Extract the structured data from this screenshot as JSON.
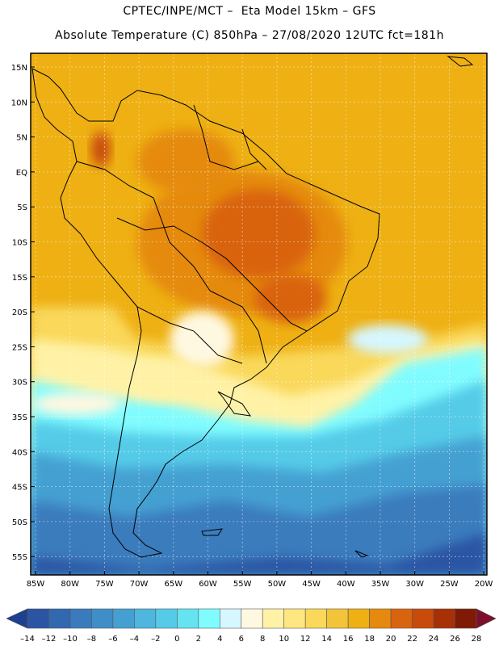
{
  "header": {
    "title_line1": "CPTEC/INPE/MCT –  Eta Model 15km – GFS",
    "title_line2": "Absolute Temperature (C) 850hPa – 27/08/2020 12UTC fct=181h"
  },
  "axes": {
    "lat_labels": [
      "15N",
      "10N",
      "5N",
      "EQ",
      "5S",
      "10S",
      "15S",
      "20S",
      "25S",
      "30S",
      "35S",
      "40S",
      "45S",
      "50S",
      "55S"
    ],
    "lon_labels": [
      "85W",
      "80W",
      "75W",
      "70W",
      "65W",
      "60W",
      "55W",
      "50W",
      "45W",
      "40W",
      "35W",
      "30W",
      "25W",
      "20W"
    ]
  },
  "colorbar": {
    "labels": [
      "-14",
      "-12",
      "-10",
      "-8",
      "-6",
      "-4",
      "-2",
      "0",
      "2",
      "4",
      "6",
      "8",
      "10",
      "12",
      "14",
      "16",
      "18",
      "20",
      "22",
      "24",
      "26",
      "28"
    ],
    "colors": [
      "#1f3f8f",
      "#2b55a3",
      "#3168b0",
      "#3a7bbd",
      "#3f8ec8",
      "#45a0d2",
      "#4eb6df",
      "#55cbe8",
      "#66e3f0",
      "#80fcff",
      "#d6f7ff",
      "#fff8e1",
      "#fff2a6",
      "#ffe680",
      "#f9d85a",
      "#f2c43a",
      "#eeb013",
      "#e58a0e",
      "#d96410",
      "#c94b0c",
      "#a83006",
      "#7f1a04",
      "#7c0f2b"
    ]
  }
}
